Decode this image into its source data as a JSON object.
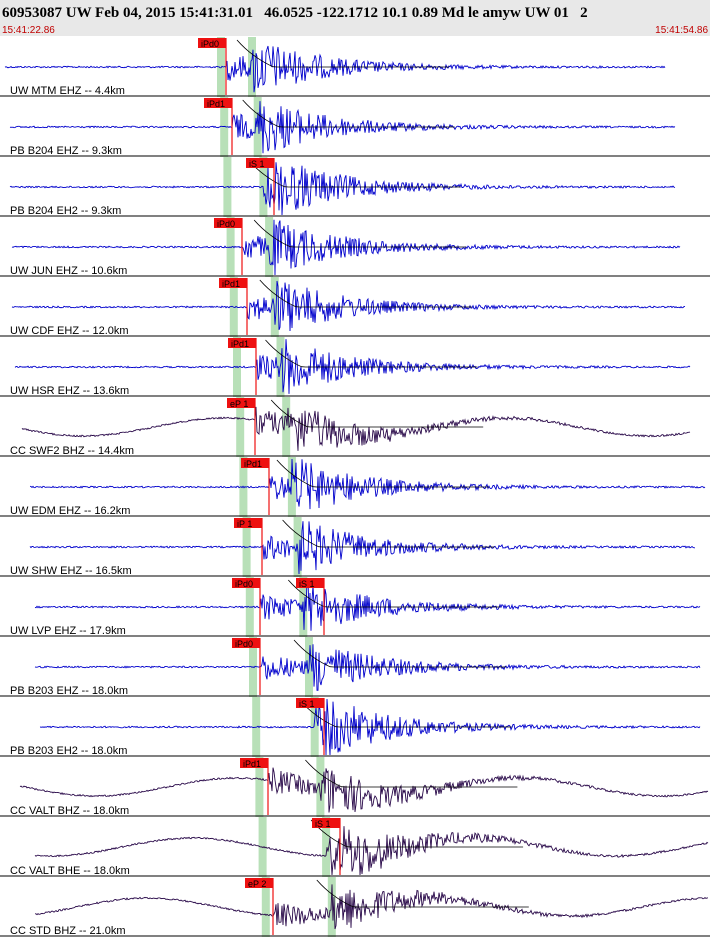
{
  "header": {
    "title": "60953087 UW Feb 04, 2015 15:41:31.01   46.0525 -122.1712 10.1 0.89 Md le amyw UW 01   2",
    "start_time": "15:41:22.86",
    "end_time": "15:41:54.86"
  },
  "traces": [
    {
      "label": "UW MTM EHZ -- 4.4km",
      "picks": [
        "iPd0"
      ],
      "color": "#0000cc"
    },
    {
      "label": "PB B204 EHZ -- 9.3km",
      "picks": [
        "iPd1"
      ],
      "color": "#0000cc"
    },
    {
      "label": "PB B204 EH2 -- 9.3km",
      "picks": [
        "iS 1"
      ],
      "color": "#0000cc"
    },
    {
      "label": "UW JUN EHZ -- 10.6km",
      "picks": [
        "iPd0"
      ],
      "color": "#0000cc"
    },
    {
      "label": "UW CDF EHZ -- 12.0km",
      "picks": [
        "iPd1"
      ],
      "color": "#0000cc"
    },
    {
      "label": "UW HSR EHZ -- 13.6km",
      "picks": [
        "iPd1"
      ],
      "color": "#0000cc"
    },
    {
      "label": "CC SWF2 BHZ -- 14.4km",
      "picks": [
        "eP 1"
      ],
      "color": "#2a0a4a"
    },
    {
      "label": "UW EDM EHZ -- 16.2km",
      "picks": [
        "iPd1"
      ],
      "color": "#0000cc"
    },
    {
      "label": "UW SHW EHZ -- 16.5km",
      "picks": [
        "iP 1"
      ],
      "color": "#0000cc"
    },
    {
      "label": "UW LVP EHZ -- 17.9km",
      "picks": [
        "iPd0",
        "iS 1"
      ],
      "color": "#0000cc"
    },
    {
      "label": "PB B203 EHZ -- 18.0km",
      "picks": [
        "iPd0"
      ],
      "color": "#0000cc"
    },
    {
      "label": "PB B203 EH2 -- 18.0km",
      "picks": [
        "iS 1"
      ],
      "color": "#0000cc"
    },
    {
      "label": "CC VALT BHZ -- 18.0km",
      "picks": [
        "iPd1"
      ],
      "color": "#2a0a4a"
    },
    {
      "label": "CC VALT BHE -- 18.0km",
      "picks": [
        "iS 1"
      ],
      "color": "#2a0a4a"
    },
    {
      "label": "CC STD BHZ -- 21.0km",
      "picks": [
        "eP 2"
      ],
      "color": "#2a0a4a"
    }
  ]
}
